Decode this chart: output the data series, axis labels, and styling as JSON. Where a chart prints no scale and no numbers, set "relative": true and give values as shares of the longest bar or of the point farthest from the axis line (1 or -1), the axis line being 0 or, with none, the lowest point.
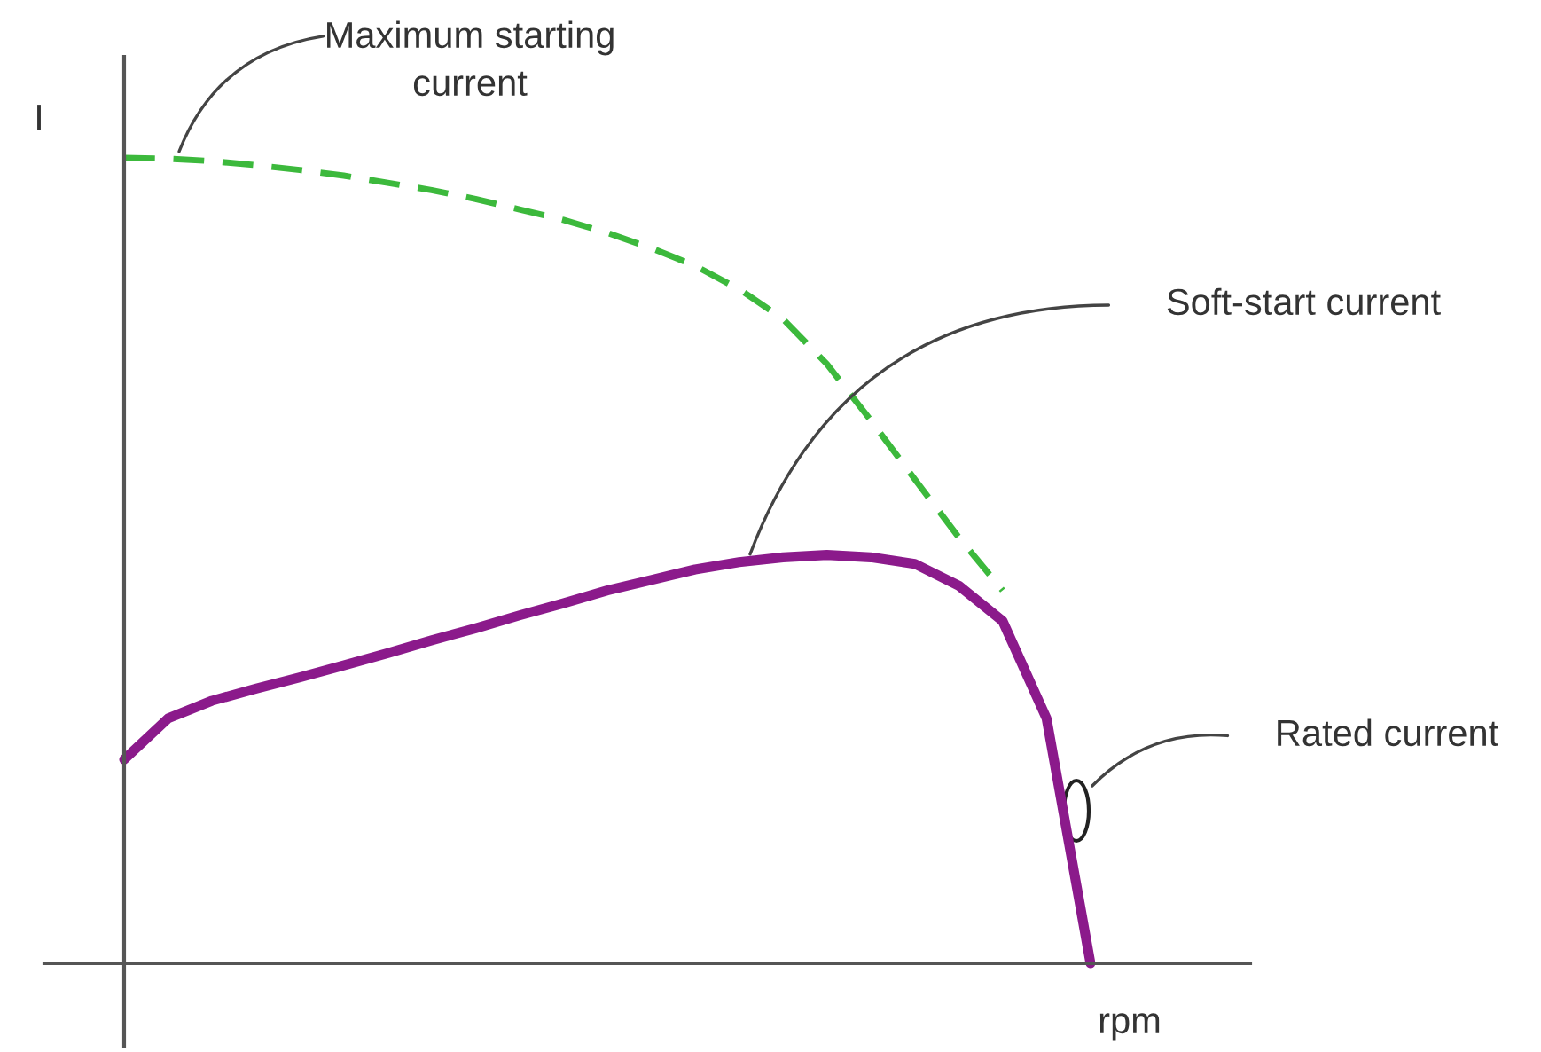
{
  "chart_data": {
    "type": "line",
    "relative": true,
    "xlabel": "rpm",
    "ylabel": "I",
    "categories": [
      null,
      null,
      null,
      null,
      null,
      null,
      null,
      null,
      null,
      null,
      null,
      null,
      null,
      null,
      null,
      null,
      null,
      null,
      null,
      null,
      null,
      null,
      null
    ],
    "series": [
      {
        "color": "#3cb93c",
        "line_style": "dashed",
        "values": [
          1.0,
          0.999,
          0.996,
          0.991,
          0.985,
          0.978,
          0.969,
          0.96,
          0.949,
          0.936,
          0.923,
          0.907,
          0.888,
          0.866,
          0.837,
          0.8,
          0.744,
          0.674,
          0.601,
          0.529,
          0.463,
          null,
          null
        ]
      },
      {
        "color": "#8b1a8b",
        "line_style": "solid",
        "values": [
          0.253,
          0.304,
          0.326,
          0.341,
          0.355,
          0.37,
          0.385,
          0.401,
          0.416,
          0.432,
          0.447,
          0.463,
          0.476,
          0.489,
          0.498,
          0.504,
          0.507,
          0.504,
          0.496,
          0.469,
          0.425,
          0.304,
          0.0
        ]
      }
    ],
    "annotations": [
      "Maximum starting\ncurrent",
      "Soft-start current",
      "Rated current"
    ],
    "legend": false
  }
}
